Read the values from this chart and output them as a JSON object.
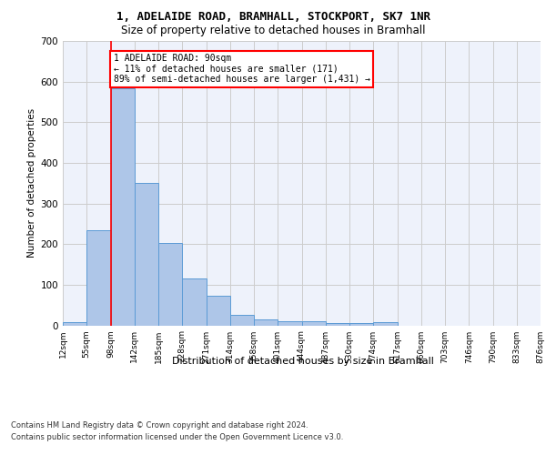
{
  "title_line1": "1, ADELAIDE ROAD, BRAMHALL, STOCKPORT, SK7 1NR",
  "title_line2": "Size of property relative to detached houses in Bramhall",
  "xlabel": "Distribution of detached houses by size in Bramhall",
  "ylabel": "Number of detached properties",
  "bar_values": [
    8,
    233,
    583,
    350,
    203,
    115,
    73,
    25,
    15,
    10,
    10,
    5,
    5,
    8,
    0,
    0,
    0,
    0,
    0,
    0
  ],
  "bin_labels": [
    "12sqm",
    "55sqm",
    "98sqm",
    "142sqm",
    "185sqm",
    "228sqm",
    "271sqm",
    "314sqm",
    "358sqm",
    "401sqm",
    "444sqm",
    "487sqm",
    "530sqm",
    "574sqm",
    "617sqm",
    "660sqm",
    "703sqm",
    "746sqm",
    "790sqm",
    "833sqm",
    "876sqm"
  ],
  "bar_color": "#aec6e8",
  "bar_edge_color": "#5b9bd5",
  "grid_color": "#cccccc",
  "bg_color": "#eef2fb",
  "property_line_x": 2,
  "annotation_line1": "1 ADELAIDE ROAD: 90sqm",
  "annotation_line2": "← 11% of detached houses are smaller (171)",
  "annotation_line3": "89% of semi-detached houses are larger (1,431) →",
  "annotation_box_color": "#cc0000",
  "ylim": [
    0,
    700
  ],
  "yticks": [
    0,
    100,
    200,
    300,
    400,
    500,
    600,
    700
  ],
  "footer_line1": "Contains HM Land Registry data © Crown copyright and database right 2024.",
  "footer_line2": "Contains public sector information licensed under the Open Government Licence v3.0."
}
